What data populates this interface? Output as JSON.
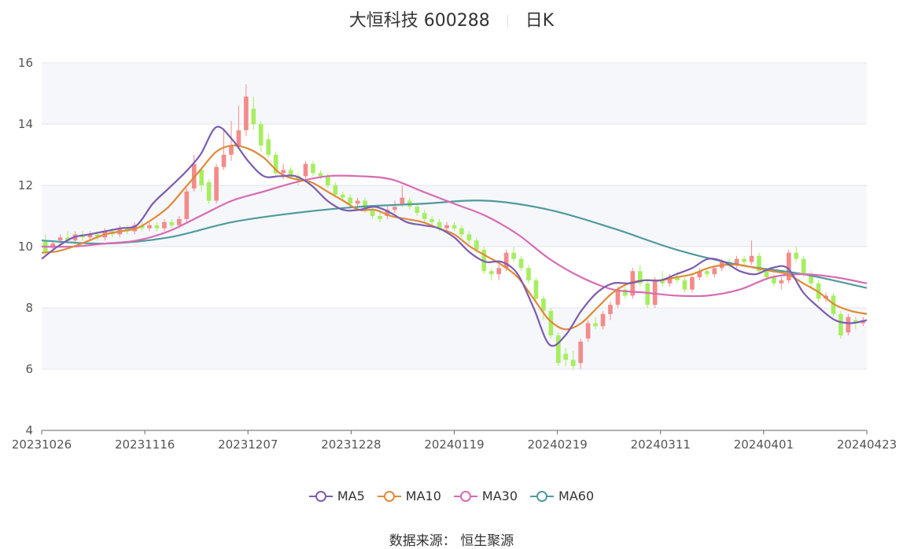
{
  "header": {
    "name": "大恒科技 600288",
    "period": "日K"
  },
  "source": "数据来源： 恒生聚源",
  "chart_data": {
    "type": "candlestick",
    "ylim": [
      4,
      16
    ],
    "y_ticks": [
      "4",
      "6",
      "8",
      "10",
      "12",
      "14",
      "16"
    ],
    "x_ticks": [
      "20231026",
      "20231116",
      "20231207",
      "20231228",
      "20240119",
      "20240219",
      "20240311",
      "20240401",
      "20240423"
    ],
    "colors": {
      "up": "#f38b8b",
      "down": "#a6ee61",
      "band": "#f6f7fb",
      "grid": "#e3e6ee",
      "axis": "#666666"
    },
    "legend": [
      {
        "name": "MA5",
        "color": "#7c5cb0"
      },
      {
        "name": "MA10",
        "color": "#e08a38"
      },
      {
        "name": "MA30",
        "color": "#d86bb3"
      },
      {
        "name": "MA60",
        "color": "#4f9a9c"
      }
    ],
    "ma": {
      "MA5": [
        [
          0,
          9.6
        ],
        [
          3,
          10
        ],
        [
          6,
          10.3
        ],
        [
          9,
          10.4
        ],
        [
          12,
          10.5
        ],
        [
          15,
          10.6
        ],
        [
          18,
          10.7
        ],
        [
          21,
          11.4
        ],
        [
          24,
          11.9
        ],
        [
          27,
          12.4
        ],
        [
          30,
          13
        ],
        [
          33,
          13.9
        ],
        [
          36,
          13.5
        ],
        [
          39,
          12.8
        ],
        [
          42,
          12.3
        ],
        [
          45,
          12.3
        ],
        [
          48,
          12.3
        ],
        [
          51,
          12
        ],
        [
          54,
          11.5
        ],
        [
          57,
          11.2
        ],
        [
          60,
          11.2
        ],
        [
          63,
          11.3
        ],
        [
          66,
          11.1
        ],
        [
          69,
          10.8
        ],
        [
          72,
          10.7
        ],
        [
          75,
          10.6
        ],
        [
          78,
          10.3
        ],
        [
          81,
          9.8
        ],
        [
          84,
          9.5
        ],
        [
          87,
          9.5
        ],
        [
          90,
          9.1
        ],
        [
          93,
          8
        ],
        [
          96,
          6.8
        ],
        [
          99,
          7.1
        ],
        [
          102,
          7.9
        ],
        [
          105,
          8.5
        ],
        [
          108,
          8.8
        ],
        [
          111,
          8.8
        ],
        [
          114,
          8.9
        ],
        [
          117,
          8.9
        ],
        [
          120,
          9.1
        ],
        [
          123,
          9.3
        ],
        [
          126,
          9.6
        ],
        [
          129,
          9.5
        ],
        [
          132,
          9.2
        ],
        [
          135,
          9.1
        ],
        [
          138,
          9.3
        ],
        [
          141,
          9.3
        ],
        [
          144,
          8.5
        ],
        [
          147,
          8
        ],
        [
          150,
          7.6
        ],
        [
          153,
          7.5
        ],
        [
          156,
          7.6
        ]
      ],
      "MA10": [
        [
          0,
          9.8
        ],
        [
          3,
          9.85
        ],
        [
          6,
          10
        ],
        [
          9,
          10.2
        ],
        [
          12,
          10.4
        ],
        [
          15,
          10.5
        ],
        [
          18,
          10.6
        ],
        [
          21,
          10.9
        ],
        [
          24,
          11.3
        ],
        [
          27,
          11.9
        ],
        [
          30,
          12.5
        ],
        [
          33,
          13.1
        ],
        [
          36,
          13.3
        ],
        [
          39,
          13.2
        ],
        [
          42,
          12.9
        ],
        [
          45,
          12.4
        ],
        [
          48,
          12.2
        ],
        [
          51,
          12.1
        ],
        [
          54,
          11.8
        ],
        [
          57,
          11.5
        ],
        [
          60,
          11.2
        ],
        [
          63,
          11.2
        ],
        [
          66,
          11
        ],
        [
          69,
          10.9
        ],
        [
          72,
          10.8
        ],
        [
          75,
          10.6
        ],
        [
          78,
          10.4
        ],
        [
          81,
          10
        ],
        [
          84,
          9.7
        ],
        [
          87,
          9.4
        ],
        [
          90,
          9
        ],
        [
          93,
          8.3
        ],
        [
          96,
          7.6
        ],
        [
          99,
          7.3
        ],
        [
          102,
          7.5
        ],
        [
          105,
          8
        ],
        [
          108,
          8.5
        ],
        [
          111,
          8.8
        ],
        [
          114,
          8.9
        ],
        [
          117,
          8.9
        ],
        [
          120,
          9
        ],
        [
          123,
          9.1
        ],
        [
          126,
          9.3
        ],
        [
          129,
          9.4
        ],
        [
          132,
          9.4
        ],
        [
          135,
          9.3
        ],
        [
          138,
          9.2
        ],
        [
          141,
          9.1
        ],
        [
          144,
          8.8
        ],
        [
          147,
          8.5
        ],
        [
          150,
          8.1
        ],
        [
          153,
          7.9
        ],
        [
          156,
          7.8
        ]
      ],
      "MA30": [
        [
          0,
          10
        ],
        [
          6,
          10
        ],
        [
          12,
          10.1
        ],
        [
          18,
          10.2
        ],
        [
          24,
          10.5
        ],
        [
          30,
          11
        ],
        [
          36,
          11.5
        ],
        [
          42,
          11.8
        ],
        [
          48,
          12.1
        ],
        [
          54,
          12.3
        ],
        [
          60,
          12.3
        ],
        [
          66,
          12.2
        ],
        [
          72,
          11.8
        ],
        [
          78,
          11.4
        ],
        [
          84,
          11
        ],
        [
          90,
          10.4
        ],
        [
          96,
          9.6
        ],
        [
          102,
          9
        ],
        [
          108,
          8.6
        ],
        [
          114,
          8.5
        ],
        [
          120,
          8.4
        ],
        [
          126,
          8.4
        ],
        [
          132,
          8.6
        ],
        [
          138,
          9
        ],
        [
          144,
          9.1
        ],
        [
          150,
          9
        ],
        [
          156,
          8.8
        ]
      ],
      "MA60": [
        [
          0,
          10.2
        ],
        [
          12,
          10.1
        ],
        [
          24,
          10.3
        ],
        [
          36,
          10.8
        ],
        [
          48,
          11.1
        ],
        [
          60,
          11.3
        ],
        [
          72,
          11.4
        ],
        [
          84,
          11.5
        ],
        [
          96,
          11.2
        ],
        [
          108,
          10.6
        ],
        [
          120,
          9.9
        ],
        [
          132,
          9.4
        ],
        [
          144,
          9.1
        ],
        [
          156,
          8.65
        ]
      ]
    },
    "candles": [
      [
        0,
        10.2,
        9.8,
        10.4,
        9.7
      ],
      [
        1,
        10,
        10.1,
        10.2,
        9.9
      ],
      [
        2,
        10.2,
        10.3,
        10.4,
        10.1
      ],
      [
        3,
        10.3,
        10.2,
        10.5,
        10.1
      ],
      [
        4,
        10.2,
        10.4,
        10.5,
        10.1
      ],
      [
        5,
        10.4,
        10.3,
        10.5,
        10.2
      ],
      [
        6,
        10.3,
        10.4,
        10.5,
        10.2
      ],
      [
        7,
        10.4,
        10.3,
        10.5,
        10.2
      ],
      [
        8,
        10.3,
        10.5,
        10.6,
        10.2
      ],
      [
        9,
        10.5,
        10.4,
        10.6,
        10.3
      ],
      [
        10,
        10.4,
        10.6,
        10.7,
        10.3
      ],
      [
        11,
        10.6,
        10.5,
        10.7,
        10.4
      ],
      [
        12,
        10.5,
        10.7,
        10.8,
        10.4
      ],
      [
        13,
        10.7,
        10.6,
        10.8,
        10.5
      ],
      [
        14,
        10.6,
        10.7,
        10.8,
        10.5
      ],
      [
        15,
        10.7,
        10.6,
        10.8,
        10.5
      ],
      [
        16,
        10.6,
        10.8,
        10.9,
        10.5
      ],
      [
        17,
        10.8,
        10.7,
        10.9,
        10.6
      ],
      [
        18,
        10.7,
        10.9,
        11,
        10.6
      ],
      [
        19,
        10.9,
        11.8,
        11.9,
        10.8
      ],
      [
        20,
        11.9,
        12.7,
        13,
        11.8
      ],
      [
        21,
        12.5,
        12,
        12.6,
        11.8
      ],
      [
        22,
        12.1,
        11.5,
        12.2,
        11.4
      ],
      [
        23,
        11.5,
        12.6,
        12.7,
        11.4
      ],
      [
        24,
        12.6,
        13,
        13.8,
        12.5
      ],
      [
        25,
        13,
        13.3,
        14.1,
        12.8
      ],
      [
        26,
        13.3,
        13.8,
        14.6,
        13.2
      ],
      [
        27,
        13.8,
        14.9,
        15.3,
        13.6
      ],
      [
        28,
        14.5,
        14,
        14.9,
        13.8
      ],
      [
        29,
        14,
        13.3,
        14.1,
        13.1
      ],
      [
        30,
        13.5,
        13,
        13.7,
        12.9
      ],
      [
        31,
        13,
        12.4,
        13.1,
        12.3
      ],
      [
        32,
        12.4,
        12.5,
        12.7,
        12.2
      ],
      [
        33,
        12.5,
        12.3,
        12.6,
        12.2
      ],
      [
        34,
        12.3,
        12.2,
        12.4,
        12
      ],
      [
        35,
        12.3,
        12.7,
        12.8,
        12.2
      ],
      [
        36,
        12.7,
        12.4,
        12.8,
        12.3
      ],
      [
        37,
        12.4,
        12.3,
        12.5,
        12.2
      ],
      [
        38,
        12.3,
        12,
        12.4,
        11.9
      ],
      [
        39,
        12,
        11.7,
        12.1,
        11.6
      ],
      [
        40,
        11.7,
        11.6,
        11.8,
        11.5
      ],
      [
        41,
        11.6,
        11.4,
        11.7,
        11.3
      ],
      [
        42,
        11.4,
        11.5,
        11.6,
        11.2
      ],
      [
        43,
        11.5,
        11.2,
        11.6,
        11.1
      ],
      [
        44,
        11.2,
        11,
        11.3,
        10.9
      ],
      [
        45,
        11,
        10.9,
        11.2,
        10.8
      ],
      [
        46,
        11,
        11.2,
        11.3,
        10.9
      ],
      [
        47,
        11.2,
        11.3,
        11.5,
        11.1
      ],
      [
        48,
        11.4,
        11.6,
        12,
        11.3
      ],
      [
        49,
        11.5,
        11.3,
        11.6,
        11.2
      ],
      [
        50,
        11.3,
        11.1,
        11.4,
        11
      ],
      [
        51,
        11.1,
        10.9,
        11.2,
        10.8
      ],
      [
        52,
        10.9,
        10.8,
        11,
        10.7
      ],
      [
        53,
        10.8,
        10.6,
        10.9,
        10.5
      ],
      [
        54,
        10.6,
        10.7,
        10.8,
        10.5
      ],
      [
        55,
        10.7,
        10.6,
        10.8,
        10.5
      ],
      [
        56,
        10.6,
        10.4,
        10.7,
        10.3
      ],
      [
        57,
        10.4,
        10.2,
        10.5,
        10.1
      ],
      [
        58,
        10.2,
        9.9,
        10.3,
        9.8
      ],
      [
        59,
        9.9,
        9.2,
        10,
        9.1
      ],
      [
        60,
        9.2,
        9.1,
        9.3,
        8.9
      ],
      [
        61,
        9.1,
        9.3,
        9.4,
        8.9
      ],
      [
        62,
        9.3,
        9.8,
        9.9,
        9.2
      ],
      [
        63,
        9.8,
        9.6,
        10,
        9.5
      ],
      [
        64,
        9.6,
        9.3,
        9.7,
        9.2
      ],
      [
        65,
        9.3,
        8.9,
        9.4,
        8.8
      ],
      [
        66,
        8.9,
        8.3,
        9,
        8.2
      ],
      [
        67,
        8.3,
        7.9,
        8.4,
        7.6
      ],
      [
        68,
        7.9,
        7.1,
        8,
        7
      ],
      [
        69,
        7.1,
        6.2,
        7.2,
        6.1
      ],
      [
        70,
        6.5,
        6.3,
        6.7,
        6.1
      ],
      [
        71,
        6.3,
        6.1,
        6.6,
        6
      ],
      [
        72,
        6.2,
        6.9,
        7,
        6
      ],
      [
        73,
        7,
        7.5,
        7.6,
        6.9
      ],
      [
        74,
        7.5,
        7.4,
        7.7,
        7.3
      ],
      [
        75,
        7.4,
        7.8,
        7.9,
        7.3
      ],
      [
        76,
        7.8,
        8.1,
        8.2,
        7.6
      ],
      [
        77,
        8.1,
        8.6,
        8.7,
        8
      ],
      [
        78,
        8.6,
        8.4,
        8.7,
        8.3
      ],
      [
        79,
        8.4,
        9.2,
        9.3,
        8.3
      ],
      [
        80,
        9.2,
        8.8,
        9.4,
        8.7
      ],
      [
        81,
        8.8,
        8.1,
        8.9,
        8
      ],
      [
        82,
        8.1,
        8.9,
        9,
        8
      ],
      [
        83,
        8.9,
        8.8,
        9.2,
        8.7
      ],
      [
        84,
        8.8,
        9,
        9.1,
        8.7
      ],
      [
        85,
        9,
        8.9,
        9.2,
        8.8
      ],
      [
        86,
        8.9,
        8.6,
        9,
        8.5
      ],
      [
        87,
        8.6,
        9,
        9.1,
        8.5
      ],
      [
        88,
        9,
        9.2,
        9.3,
        8.9
      ],
      [
        89,
        9.2,
        9.1,
        9.3,
        9
      ],
      [
        90,
        9.1,
        9.3,
        9.4,
        9
      ],
      [
        91,
        9.3,
        9.5,
        9.6,
        9.2
      ],
      [
        92,
        9.5,
        9.4,
        9.6,
        9.3
      ],
      [
        93,
        9.4,
        9.6,
        9.7,
        9.3
      ],
      [
        94,
        9.6,
        9.5,
        9.7,
        9.4
      ],
      [
        95,
        9.5,
        9.7,
        10.2,
        9.4
      ],
      [
        96,
        9.7,
        9.2,
        9.8,
        9.1
      ],
      [
        97,
        9.2,
        9,
        9.3,
        8.9
      ],
      [
        98,
        9,
        8.8,
        9.1,
        8.7
      ],
      [
        99,
        8.8,
        8.9,
        9,
        8.6
      ],
      [
        100,
        8.9,
        9.8,
        9.9,
        8.8
      ],
      [
        101,
        9.8,
        9.6,
        10,
        9.5
      ],
      [
        102,
        9.6,
        9.1,
        9.7,
        9
      ],
      [
        103,
        9.1,
        8.8,
        9.2,
        8.7
      ],
      [
        104,
        8.8,
        8.3,
        8.9,
        8.2
      ],
      [
        105,
        8.3,
        8.4,
        8.5,
        8.2
      ],
      [
        106,
        8.4,
        7.8,
        8.5,
        7.7
      ],
      [
        107,
        7.8,
        7.1,
        7.9,
        7
      ],
      [
        108,
        7.2,
        7.7,
        7.8,
        7.1
      ],
      [
        109,
        7.6,
        7.5,
        7.7,
        7.3
      ],
      [
        110,
        7.5,
        7.6,
        7.7,
        7.4
      ]
    ]
  }
}
